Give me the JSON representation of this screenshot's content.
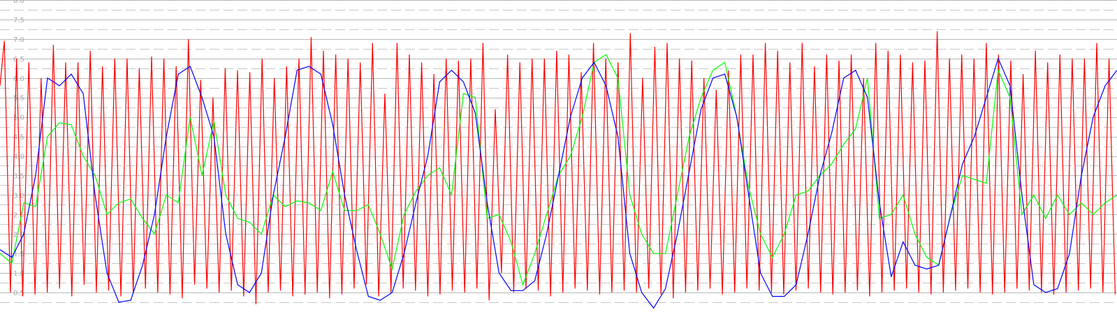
{
  "chart_data": {
    "type": "line",
    "title": "",
    "xlabel": "",
    "ylabel": "",
    "ylim": [
      0,
      8
    ],
    "ytick_labels": [
      "0.5",
      "1.0",
      "1.5",
      "2.0",
      "2.5",
      "3.0",
      "3.5",
      "4.0",
      "4.5",
      "5.0",
      "5.5",
      "6.0",
      "6.5",
      "7.0",
      "7.5",
      "8.0"
    ],
    "grid": true,
    "legend": "none",
    "colors": {
      "grid_major": "#b8b8b8",
      "grid_minor": "#c8c8c8",
      "tick_text": "#a8a8a8"
    },
    "series": [
      {
        "color": "#0000ff",
        "y": [
          1.6,
          1.4,
          2.0,
          3.5,
          6.0,
          5.8,
          6.1,
          5.6,
          3.0,
          1.0,
          0.25,
          0.3,
          1.2,
          2.5,
          4.5,
          6.1,
          6.3,
          5.5,
          4.5,
          2.0,
          0.7,
          0.5,
          1.0,
          3.0,
          4.5,
          6.2,
          6.3,
          6.1,
          4.8,
          3.0,
          1.6,
          0.4,
          0.3,
          0.5,
          1.5,
          2.8,
          4.0,
          5.9,
          6.2,
          5.9,
          5.1,
          2.8,
          1.0,
          0.55,
          0.55,
          0.8,
          2.0,
          3.5,
          5.0,
          6.0,
          6.4,
          5.8,
          4.5,
          1.5,
          0.5,
          0.1,
          0.6,
          2.0,
          3.6,
          5.2,
          6.0,
          6.1,
          5.0,
          3.0,
          1.0,
          0.4,
          0.4,
          0.7,
          2.0,
          3.5,
          4.6,
          6.0,
          6.2,
          5.5,
          2.8,
          0.9,
          1.8,
          1.2,
          1.1,
          1.2,
          2.5,
          3.8,
          4.5,
          5.5,
          6.5,
          5.8,
          3.0,
          0.7,
          0.5,
          0.6,
          1.5,
          3.5,
          5.0,
          5.8,
          6.2
        ]
      },
      {
        "color": "#00ff00",
        "y": [
          1.5,
          1.25,
          2.8,
          2.7,
          4.5,
          4.85,
          4.8,
          4.0,
          3.5,
          2.5,
          2.8,
          2.9,
          2.4,
          2.0,
          3.0,
          2.8,
          5.0,
          3.5,
          4.9,
          3.0,
          2.4,
          2.3,
          2.0,
          3.0,
          2.7,
          2.85,
          2.8,
          2.6,
          3.6,
          2.6,
          2.6,
          2.75,
          2.0,
          1.1,
          2.5,
          3.1,
          3.5,
          3.7,
          3.0,
          5.6,
          5.5,
          2.4,
          2.5,
          1.8,
          0.7,
          1.5,
          2.5,
          3.5,
          4.0,
          5.0,
          6.4,
          6.6,
          6.0,
          3.0,
          2.0,
          1.5,
          1.5,
          3.0,
          4.5,
          5.5,
          6.2,
          6.4,
          5.0,
          3.2,
          2.0,
          1.4,
          2.0,
          3.0,
          3.1,
          3.5,
          3.8,
          4.3,
          4.7,
          6.0,
          2.4,
          2.5,
          3.0,
          2.0,
          1.4,
          1.2,
          2.5,
          3.5,
          3.4,
          3.3,
          6.2,
          5.5,
          2.5,
          3.0,
          2.4,
          3.0,
          2.5,
          2.8,
          2.5,
          2.8,
          3.0
        ]
      },
      {
        "color": "#ff0000",
        "cycles": 91,
        "high": [
          6.95,
          6.5,
          6.4,
          6.0,
          6.85,
          6.4,
          6.4,
          6.7,
          6.3,
          6.5,
          6.5,
          6.25,
          6.55,
          6.5,
          6.3,
          7.0,
          5.95,
          5.5,
          6.25,
          6.2,
          6.15,
          6.5,
          6.0,
          6.3,
          6.5,
          7.05,
          6.7,
          6.6,
          6.5,
          6.4,
          6.9,
          5.6,
          6.9,
          6.6,
          6.4,
          6.1,
          6.5,
          6.45,
          6.5,
          6.9,
          5.2,
          6.6,
          6.4,
          6.5,
          6.5,
          6.7,
          6.6,
          6.15,
          6.9,
          6.5,
          6.4,
          7.15,
          6.0,
          6.8,
          6.9,
          6.5,
          6.45,
          6.0,
          5.7,
          6.2,
          6.6,
          6.6,
          6.9,
          6.7,
          6.4,
          6.9,
          6.3,
          6.6,
          6.45,
          6.6,
          6.0,
          6.9,
          6.7,
          6.6,
          6.4,
          6.45,
          7.2,
          6.5,
          6.6,
          6.5,
          6.9,
          6.6,
          6.45,
          6.1,
          6.7,
          6.4,
          6.6,
          6.5,
          6.5,
          6.9,
          6.5
        ],
        "low": [
          0.5,
          0.4,
          0.45,
          0.5,
          0.6,
          0.4,
          0.7,
          0.5,
          0.55,
          0.4,
          0.5,
          0.6,
          0.5,
          0.45,
          0.35,
          0.7,
          0.6,
          0.5,
          0.55,
          0.4,
          0.2,
          0.5,
          0.55,
          0.4,
          0.45,
          0.5,
          0.35,
          0.45,
          0.6,
          0.7,
          0.4,
          0.5,
          0.6,
          0.55,
          0.4,
          0.45,
          0.55,
          0.5,
          0.6,
          0.3,
          1.0,
          0.5,
          0.6,
          0.55,
          0.4,
          0.5,
          0.6,
          0.55,
          0.45,
          0.5,
          0.55,
          0.5,
          0.6,
          0.45,
          0.35,
          0.5,
          0.55,
          0.6,
          0.45,
          0.5,
          0.6,
          0.55,
          0.5,
          0.45,
          0.55,
          0.6,
          0.5,
          0.45,
          0.5,
          0.55,
          0.4,
          0.5,
          0.55,
          0.6,
          0.5,
          0.45,
          0.5,
          0.55,
          0.6,
          0.5,
          0.45,
          0.5,
          0.6,
          0.55,
          0.5,
          0.45,
          0.5,
          0.55,
          0.6,
          0.5,
          0.45
        ]
      }
    ]
  }
}
